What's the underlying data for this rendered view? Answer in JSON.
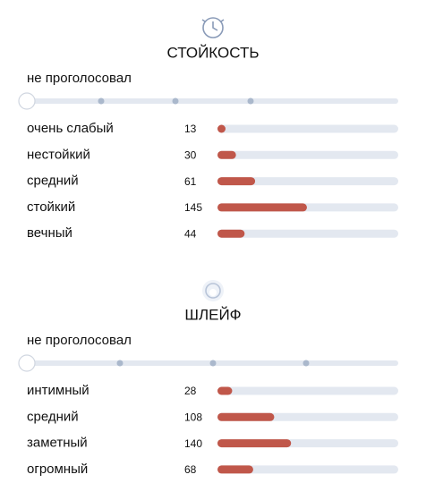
{
  "sections": [
    {
      "title": "СТОЙКОСТЬ",
      "status": "не проголосовал",
      "rows": [
        {
          "label": "очень слабый",
          "count": 13
        },
        {
          "label": "нестойкий",
          "count": 30
        },
        {
          "label": "средний",
          "count": 61
        },
        {
          "label": "стойкий",
          "count": 145
        },
        {
          "label": "вечный",
          "count": 44
        }
      ]
    },
    {
      "title": "ШЛЕЙФ",
      "status": "не проголосовал",
      "rows": [
        {
          "label": "интимный",
          "count": 28
        },
        {
          "label": "средний",
          "count": 108
        },
        {
          "label": "заметный",
          "count": 140
        },
        {
          "label": "огромный",
          "count": 68
        }
      ]
    }
  ]
}
